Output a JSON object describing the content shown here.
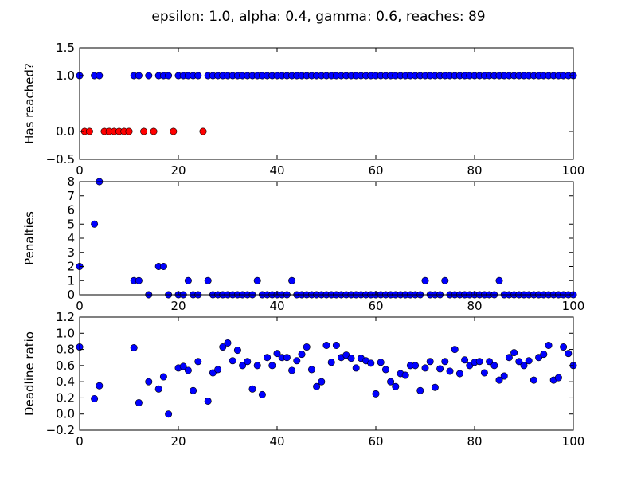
{
  "title": "epsilon: 1.0, alpha: 0.4, gamma: 0.6, reaches: 89",
  "colors": {
    "blue": "#0000ff",
    "red": "#ff0000"
  },
  "chart_data": [
    {
      "type": "scatter",
      "ylabel": "Has reached?",
      "xlim": [
        0,
        100
      ],
      "ylim": [
        -0.5,
        1.5
      ],
      "xticks": [
        "0",
        "20",
        "40",
        "60",
        "80",
        "100"
      ],
      "yticks": [
        "1.5",
        "1.0",
        "0.0",
        "−0.5"
      ],
      "ytick_values": [
        1.5,
        1.0,
        0.0,
        -0.5
      ],
      "series": [
        {
          "color": "red",
          "points": [
            [
              1,
              0
            ],
            [
              2,
              0
            ],
            [
              5,
              0
            ],
            [
              6,
              0
            ],
            [
              7,
              0
            ],
            [
              8,
              0
            ],
            [
              9,
              0
            ],
            [
              10,
              0
            ],
            [
              13,
              0
            ],
            [
              15,
              0
            ],
            [
              19,
              0
            ],
            [
              25,
              0
            ]
          ]
        },
        {
          "color": "blue",
          "points": [
            [
              0,
              1
            ],
            [
              3,
              1
            ],
            [
              4,
              1
            ],
            [
              11,
              1
            ],
            [
              12,
              1
            ],
            [
              14,
              1
            ],
            [
              16,
              1
            ],
            [
              17,
              1
            ],
            [
              18,
              1
            ],
            [
              20,
              1
            ],
            [
              21,
              1
            ],
            [
              22,
              1
            ],
            [
              23,
              1
            ],
            [
              24,
              1
            ],
            [
              26,
              1
            ],
            [
              27,
              1
            ],
            [
              28,
              1
            ],
            [
              29,
              1
            ],
            [
              30,
              1
            ],
            [
              31,
              1
            ],
            [
              32,
              1
            ],
            [
              33,
              1
            ],
            [
              34,
              1
            ],
            [
              35,
              1
            ],
            [
              36,
              1
            ],
            [
              37,
              1
            ],
            [
              38,
              1
            ],
            [
              39,
              1
            ],
            [
              40,
              1
            ],
            [
              41,
              1
            ],
            [
              42,
              1
            ],
            [
              43,
              1
            ],
            [
              44,
              1
            ],
            [
              45,
              1
            ],
            [
              46,
              1
            ],
            [
              47,
              1
            ],
            [
              48,
              1
            ],
            [
              49,
              1
            ],
            [
              50,
              1
            ],
            [
              51,
              1
            ],
            [
              52,
              1
            ],
            [
              53,
              1
            ],
            [
              54,
              1
            ],
            [
              55,
              1
            ],
            [
              56,
              1
            ],
            [
              57,
              1
            ],
            [
              58,
              1
            ],
            [
              59,
              1
            ],
            [
              60,
              1
            ],
            [
              61,
              1
            ],
            [
              62,
              1
            ],
            [
              63,
              1
            ],
            [
              64,
              1
            ],
            [
              65,
              1
            ],
            [
              66,
              1
            ],
            [
              67,
              1
            ],
            [
              68,
              1
            ],
            [
              69,
              1
            ],
            [
              70,
              1
            ],
            [
              71,
              1
            ],
            [
              72,
              1
            ],
            [
              73,
              1
            ],
            [
              74,
              1
            ],
            [
              75,
              1
            ],
            [
              76,
              1
            ],
            [
              77,
              1
            ],
            [
              78,
              1
            ],
            [
              79,
              1
            ],
            [
              80,
              1
            ],
            [
              81,
              1
            ],
            [
              82,
              1
            ],
            [
              83,
              1
            ],
            [
              84,
              1
            ],
            [
              85,
              1
            ],
            [
              86,
              1
            ],
            [
              87,
              1
            ],
            [
              88,
              1
            ],
            [
              89,
              1
            ],
            [
              90,
              1
            ],
            [
              91,
              1
            ],
            [
              92,
              1
            ],
            [
              93,
              1
            ],
            [
              94,
              1
            ],
            [
              95,
              1
            ],
            [
              96,
              1
            ],
            [
              97,
              1
            ],
            [
              98,
              1
            ],
            [
              99,
              1
            ],
            [
              100,
              1
            ]
          ]
        }
      ]
    },
    {
      "type": "scatter",
      "ylabel": "Penalties",
      "xlim": [
        0,
        100
      ],
      "ylim": [
        0,
        8
      ],
      "xticks": [
        "0",
        "20",
        "40",
        "60",
        "80",
        "100"
      ],
      "yticks": [
        "8",
        "7",
        "6",
        "5",
        "4",
        "3",
        "2",
        "1",
        "0"
      ],
      "ytick_values": [
        8,
        7,
        6,
        5,
        4,
        3,
        2,
        1,
        0
      ],
      "series": [
        {
          "color": "blue",
          "points": [
            [
              0,
              2
            ],
            [
              3,
              5
            ],
            [
              4,
              8
            ],
            [
              11,
              1
            ],
            [
              12,
              1
            ],
            [
              14,
              0
            ],
            [
              16,
              2
            ],
            [
              17,
              2
            ],
            [
              18,
              0
            ],
            [
              20,
              0
            ],
            [
              21,
              0
            ],
            [
              22,
              1
            ],
            [
              23,
              0
            ],
            [
              24,
              0
            ],
            [
              26,
              1
            ],
            [
              27,
              0
            ],
            [
              28,
              0
            ],
            [
              29,
              0
            ],
            [
              30,
              0
            ],
            [
              31,
              0
            ],
            [
              32,
              0
            ],
            [
              33,
              0
            ],
            [
              34,
              0
            ],
            [
              35,
              0
            ],
            [
              36,
              1
            ],
            [
              37,
              0
            ],
            [
              38,
              0
            ],
            [
              39,
              0
            ],
            [
              40,
              0
            ],
            [
              41,
              0
            ],
            [
              42,
              0
            ],
            [
              43,
              1
            ],
            [
              44,
              0
            ],
            [
              45,
              0
            ],
            [
              46,
              0
            ],
            [
              47,
              0
            ],
            [
              48,
              0
            ],
            [
              49,
              0
            ],
            [
              50,
              0
            ],
            [
              51,
              0
            ],
            [
              52,
              0
            ],
            [
              53,
              0
            ],
            [
              54,
              0
            ],
            [
              55,
              0
            ],
            [
              56,
              0
            ],
            [
              57,
              0
            ],
            [
              58,
              0
            ],
            [
              59,
              0
            ],
            [
              60,
              0
            ],
            [
              61,
              0
            ],
            [
              62,
              0
            ],
            [
              63,
              0
            ],
            [
              64,
              0
            ],
            [
              65,
              0
            ],
            [
              66,
              0
            ],
            [
              67,
              0
            ],
            [
              68,
              0
            ],
            [
              69,
              0
            ],
            [
              70,
              1
            ],
            [
              71,
              0
            ],
            [
              72,
              0
            ],
            [
              73,
              0
            ],
            [
              74,
              1
            ],
            [
              75,
              0
            ],
            [
              76,
              0
            ],
            [
              77,
              0
            ],
            [
              78,
              0
            ],
            [
              79,
              0
            ],
            [
              80,
              0
            ],
            [
              81,
              0
            ],
            [
              82,
              0
            ],
            [
              83,
              0
            ],
            [
              84,
              0
            ],
            [
              85,
              1
            ],
            [
              86,
              0
            ],
            [
              87,
              0
            ],
            [
              88,
              0
            ],
            [
              89,
              0
            ],
            [
              90,
              0
            ],
            [
              91,
              0
            ],
            [
              92,
              0
            ],
            [
              93,
              0
            ],
            [
              94,
              0
            ],
            [
              95,
              0
            ],
            [
              96,
              0
            ],
            [
              97,
              0
            ],
            [
              98,
              0
            ],
            [
              99,
              0
            ],
            [
              100,
              0
            ]
          ]
        }
      ]
    },
    {
      "type": "scatter",
      "ylabel": "Deadline ratio",
      "xlim": [
        0,
        100
      ],
      "ylim": [
        -0.2,
        1.2
      ],
      "xticks": [
        "0",
        "20",
        "40",
        "60",
        "80",
        "100"
      ],
      "yticks": [
        "1.2",
        "1.0",
        "0.8",
        "0.6",
        "0.4",
        "0.2",
        "0.0",
        "−0.2"
      ],
      "ytick_values": [
        1.2,
        1.0,
        0.8,
        0.6,
        0.4,
        0.2,
        0.0,
        -0.2
      ],
      "series": [
        {
          "color": "blue",
          "points": [
            [
              0,
              0.83
            ],
            [
              3,
              0.19
            ],
            [
              4,
              0.35
            ],
            [
              11,
              0.82
            ],
            [
              12,
              0.14
            ],
            [
              14,
              0.4
            ],
            [
              16,
              0.31
            ],
            [
              17,
              0.46
            ],
            [
              18,
              0.0
            ],
            [
              20,
              0.57
            ],
            [
              21,
              0.59
            ],
            [
              22,
              0.54
            ],
            [
              23,
              0.29
            ],
            [
              24,
              0.65
            ],
            [
              26,
              0.16
            ],
            [
              27,
              0.51
            ],
            [
              28,
              0.55
            ],
            [
              29,
              0.83
            ],
            [
              30,
              0.88
            ],
            [
              31,
              0.66
            ],
            [
              32,
              0.79
            ],
            [
              33,
              0.6
            ],
            [
              34,
              0.65
            ],
            [
              35,
              0.31
            ],
            [
              36,
              0.6
            ],
            [
              37,
              0.24
            ],
            [
              38,
              0.7
            ],
            [
              39,
              0.6
            ],
            [
              40,
              0.75
            ],
            [
              41,
              0.7
            ],
            [
              42,
              0.7
            ],
            [
              43,
              0.54
            ],
            [
              44,
              0.66
            ],
            [
              45,
              0.74
            ],
            [
              46,
              0.83
            ],
            [
              47,
              0.55
            ],
            [
              48,
              0.34
            ],
            [
              49,
              0.4
            ],
            [
              50,
              0.85
            ],
            [
              51,
              0.64
            ],
            [
              52,
              0.85
            ],
            [
              53,
              0.7
            ],
            [
              54,
              0.73
            ],
            [
              55,
              0.69
            ],
            [
              56,
              0.57
            ],
            [
              57,
              0.69
            ],
            [
              58,
              0.66
            ],
            [
              59,
              0.63
            ],
            [
              60,
              0.25
            ],
            [
              61,
              0.64
            ],
            [
              62,
              0.55
            ],
            [
              63,
              0.4
            ],
            [
              64,
              0.34
            ],
            [
              65,
              0.5
            ],
            [
              66,
              0.48
            ],
            [
              67,
              0.6
            ],
            [
              68,
              0.6
            ],
            [
              69,
              0.29
            ],
            [
              70,
              0.57
            ],
            [
              71,
              0.65
            ],
            [
              72,
              0.33
            ],
            [
              73,
              0.56
            ],
            [
              74,
              0.65
            ],
            [
              75,
              0.53
            ],
            [
              76,
              0.8
            ],
            [
              77,
              0.5
            ],
            [
              78,
              0.67
            ],
            [
              79,
              0.6
            ],
            [
              80,
              0.64
            ],
            [
              81,
              0.65
            ],
            [
              82,
              0.51
            ],
            [
              83,
              0.65
            ],
            [
              84,
              0.6
            ],
            [
              85,
              0.42
            ],
            [
              86,
              0.47
            ],
            [
              87,
              0.7
            ],
            [
              88,
              0.76
            ],
            [
              89,
              0.65
            ],
            [
              90,
              0.6
            ],
            [
              91,
              0.66
            ],
            [
              92,
              0.42
            ],
            [
              93,
              0.7
            ],
            [
              94,
              0.74
            ],
            [
              95,
              0.85
            ],
            [
              96,
              0.42
            ],
            [
              97,
              0.45
            ],
            [
              98,
              0.83
            ],
            [
              99,
              0.75
            ],
            [
              100,
              0.6
            ]
          ]
        }
      ]
    }
  ]
}
